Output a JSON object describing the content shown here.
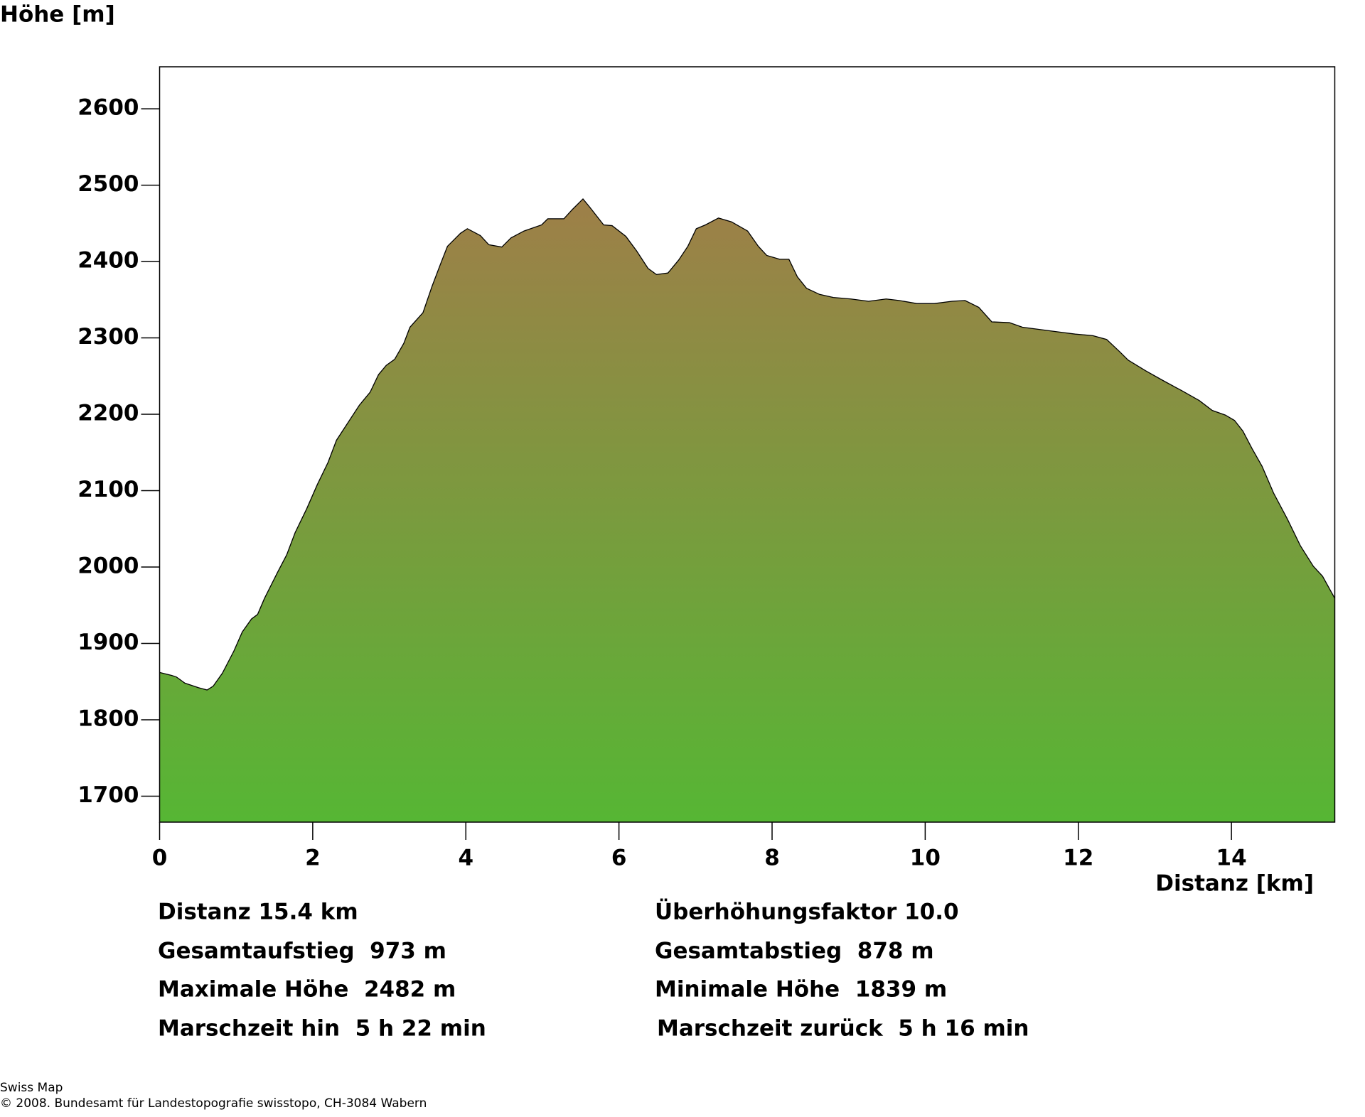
{
  "chart_data": {
    "type": "area",
    "y_label": "Höhe [m]",
    "x_label": "Distanz [km]",
    "x": [
      0,
      0.16,
      0.22,
      0.33,
      0.51,
      0.62,
      0.7,
      0.82,
      0.97,
      1.08,
      1.2,
      1.28,
      1.37,
      1.54,
      1.66,
      1.77,
      1.92,
      2.06,
      2.2,
      2.31,
      2.46,
      2.61,
      2.75,
      2.86,
      2.96,
      3.07,
      3.19,
      3.27,
      3.44,
      3.56,
      3.67,
      3.76,
      3.93,
      4.02,
      4.19,
      4.3,
      4.47,
      4.59,
      4.76,
      4.99,
      5.07,
      5.28,
      5.39,
      5.53,
      5.62,
      5.8,
      5.91,
      6.09,
      6.23,
      6.38,
      6.49,
      6.64,
      6.78,
      6.9,
      7.01,
      7.13,
      7.3,
      7.47,
      7.68,
      7.82,
      7.93,
      8.1,
      8.22,
      8.33,
      8.45,
      8.62,
      8.8,
      9.03,
      9.26,
      9.49,
      9.66,
      9.89,
      10.12,
      10.35,
      10.52,
      10.7,
      10.87,
      11.1,
      11.27,
      11.5,
      11.73,
      11.96,
      12.19,
      12.37,
      12.54,
      12.65,
      12.88,
      13.11,
      13.35,
      13.58,
      13.75,
      13.92,
      14.04,
      14.15,
      14.27,
      14.4,
      14.55,
      14.73,
      14.9,
      15.07,
      15.19,
      15.35
    ],
    "values": [
      1862,
      1858,
      1856,
      1848,
      1842,
      1839,
      1844,
      1861,
      1890,
      1915,
      1932,
      1938,
      1959,
      1993,
      2016,
      2045,
      2076,
      2108,
      2137,
      2166,
      2189,
      2212,
      2229,
      2252,
      2264,
      2272,
      2293,
      2314,
      2333,
      2368,
      2397,
      2420,
      2437,
      2443,
      2434,
      2422,
      2419,
      2431,
      2440,
      2448,
      2456,
      2456,
      2468,
      2482,
      2471,
      2448,
      2447,
      2433,
      2414,
      2391,
      2383,
      2385,
      2402,
      2420,
      2443,
      2448,
      2457,
      2452,
      2440,
      2420,
      2408,
      2403,
      2403,
      2380,
      2365,
      2357,
      2353,
      2351,
      2348,
      2351,
      2349,
      2345,
      2345,
      2348,
      2349,
      2340,
      2321,
      2320,
      2314,
      2311,
      2308,
      2305,
      2303,
      2298,
      2282,
      2271,
      2257,
      2244,
      2231,
      2218,
      2205,
      2199,
      2192,
      2178,
      2155,
      2132,
      2097,
      2063,
      2028,
      2001,
      1988,
      1959
    ],
    "gradient": [
      "#9e7f48",
      "#56b634"
    ],
    "xlim": [
      0,
      15.35
    ],
    "ylim": [
      1666,
      2655
    ],
    "xticks": [
      0,
      2,
      4,
      6,
      8,
      10,
      12,
      14
    ],
    "yticks": [
      1700,
      1800,
      1900,
      2000,
      2100,
      2200,
      2300,
      2400,
      2500,
      2600
    ]
  },
  "stats": {
    "left": [
      "Distanz 15.4 km",
      "Gesamtaufstieg  973 m",
      "Maximale Höhe  2482 m",
      "Marschzeit hin  5 h 22 min"
    ],
    "right": [
      "Überhöhungsfaktor 10.0",
      "Gesamtabstieg  878 m",
      "Minimale Höhe  1839 m",
      "Marschzeit zurück  5 h 16 min"
    ]
  },
  "footer": {
    "line1": "Swiss Map",
    "line2": "© 2008. Bundesamt für Landestopografie swisstopo, CH-3084 Wabern"
  }
}
